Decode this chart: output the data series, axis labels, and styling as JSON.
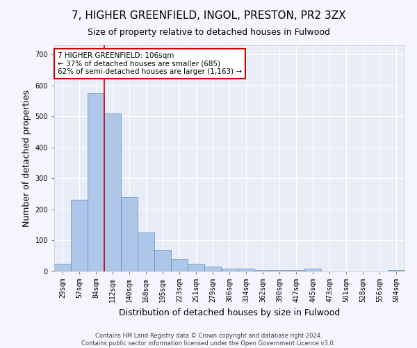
{
  "title": "7, HIGHER GREENFIELD, INGOL, PRESTON, PR2 3ZX",
  "subtitle": "Size of property relative to detached houses in Fulwood",
  "xlabel": "Distribution of detached houses by size in Fulwood",
  "ylabel": "Number of detached properties",
  "footer_line1": "Contains HM Land Registry data © Crown copyright and database right 2024.",
  "footer_line2": "Contains public sector information licensed under the Open Government Licence v3.0.",
  "categories": [
    "29sqm",
    "57sqm",
    "84sqm",
    "112sqm",
    "140sqm",
    "168sqm",
    "195sqm",
    "223sqm",
    "251sqm",
    "279sqm",
    "306sqm",
    "334sqm",
    "362sqm",
    "390sqm",
    "417sqm",
    "445sqm",
    "473sqm",
    "501sqm",
    "528sqm",
    "556sqm",
    "584sqm"
  ],
  "values": [
    25,
    232,
    575,
    510,
    240,
    125,
    70,
    40,
    25,
    15,
    10,
    10,
    5,
    5,
    5,
    10,
    0,
    0,
    0,
    0,
    5
  ],
  "bar_color": "#aec6e8",
  "bar_edge_color": "#5a8fc2",
  "ylim": [
    0,
    730
  ],
  "yticks": [
    0,
    100,
    200,
    300,
    400,
    500,
    600,
    700
  ],
  "vline_x": 2.5,
  "vline_color": "#cc0000",
  "annotation_text": "7 HIGHER GREENFIELD: 106sqm\n← 37% of detached houses are smaller (685)\n62% of semi-detached houses are larger (1,163) →",
  "annotation_box_color": "#cc0000",
  "bg_color": "#e8edf8",
  "grid_color": "#ffffff",
  "fig_bg_color": "#f5f5ff",
  "title_fontsize": 11,
  "subtitle_fontsize": 9,
  "tick_fontsize": 7,
  "ylabel_fontsize": 9,
  "xlabel_fontsize": 9,
  "annotation_fontsize": 7.5
}
